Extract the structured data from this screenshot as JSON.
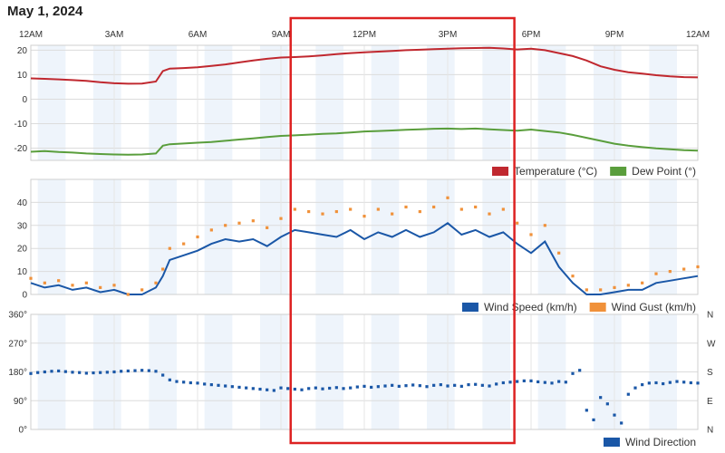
{
  "page": {
    "title": "May 1, 2024"
  },
  "highlight_color": "#dd2222",
  "chart_data": [
    {
      "type": "line",
      "x_tick_labels": [
        "12AM",
        "3AM",
        "6AM",
        "9AM",
        "12PM",
        "3PM",
        "6PM",
        "9PM",
        "12AM"
      ],
      "ylim": [
        -25,
        22
      ],
      "y_ticks": [
        -20,
        -10,
        0,
        10,
        20
      ],
      "grid": true,
      "legend_position": "bottom-right",
      "series": [
        {
          "name": "Temperature (°C)",
          "color": "#c0282f",
          "x": [
            0,
            0.5,
            1,
            1.5,
            2,
            2.5,
            3,
            3.5,
            4,
            4.5,
            4.75,
            5,
            5.5,
            6,
            6.5,
            7,
            7.5,
            8,
            8.5,
            9,
            9.5,
            10,
            10.5,
            11,
            11.5,
            12,
            12.5,
            13,
            13.5,
            14,
            14.5,
            15,
            15.5,
            16,
            16.5,
            17,
            17.5,
            18,
            18.5,
            19,
            19.5,
            20,
            20.5,
            21,
            21.5,
            22,
            22.5,
            23,
            23.5,
            24
          ],
          "values": [
            8.5,
            8.3,
            8.1,
            7.8,
            7.5,
            6.9,
            6.5,
            6.3,
            6.4,
            7.2,
            11.5,
            12.5,
            12.7,
            13.0,
            13.6,
            14.2,
            15.0,
            15.8,
            16.5,
            17.0,
            17.2,
            17.5,
            17.9,
            18.4,
            18.8,
            19.1,
            19.4,
            19.7,
            20.0,
            20.2,
            20.4,
            20.6,
            20.8,
            20.9,
            21.0,
            20.7,
            20.3,
            20.6,
            20.0,
            18.8,
            17.6,
            15.8,
            13.4,
            12.0,
            11.0,
            10.4,
            9.8,
            9.3,
            9.0,
            8.9
          ]
        },
        {
          "name": "Dew Point (°)",
          "color": "#5a9e3c",
          "x": [
            0,
            0.5,
            1,
            1.5,
            2,
            2.5,
            3,
            3.5,
            4,
            4.5,
            4.75,
            5,
            5.5,
            6,
            6.5,
            7,
            7.5,
            8,
            8.5,
            9,
            9.5,
            10,
            10.5,
            11,
            11.5,
            12,
            12.5,
            13,
            13.5,
            14,
            14.5,
            15,
            15.5,
            16,
            16.5,
            17,
            17.5,
            18,
            18.5,
            19,
            19.5,
            20,
            20.5,
            21,
            21.5,
            22,
            22.5,
            23,
            23.5,
            24
          ],
          "values": [
            -21.5,
            -21.2,
            -21.6,
            -21.8,
            -22.2,
            -22.4,
            -22.6,
            -22.7,
            -22.6,
            -22.2,
            -19.0,
            -18.4,
            -18.1,
            -17.8,
            -17.5,
            -17.0,
            -16.5,
            -16.0,
            -15.5,
            -15.0,
            -14.8,
            -14.5,
            -14.2,
            -14.0,
            -13.6,
            -13.2,
            -13.0,
            -12.8,
            -12.5,
            -12.3,
            -12.1,
            -12.0,
            -12.2,
            -12.0,
            -12.3,
            -12.6,
            -12.9,
            -12.4,
            -13.0,
            -13.6,
            -14.6,
            -15.8,
            -17.0,
            -18.2,
            -19.0,
            -19.6,
            -20.1,
            -20.5,
            -20.8,
            -21.0
          ]
        }
      ]
    },
    {
      "type": "line",
      "x_tick_labels": [
        "12AM",
        "3AM",
        "6AM",
        "9AM",
        "12PM",
        "3PM",
        "6PM",
        "9PM",
        "12AM"
      ],
      "ylim": [
        0,
        50
      ],
      "y_ticks": [
        0,
        10,
        20,
        30,
        40
      ],
      "grid": true,
      "legend_position": "bottom-right",
      "series": [
        {
          "name": "Wind Speed (km/h)",
          "color": "#1a57a7",
          "x": [
            0,
            0.5,
            1,
            1.5,
            2,
            2.5,
            3,
            3.5,
            4,
            4.5,
            4.75,
            5,
            5.5,
            6,
            6.5,
            7,
            7.5,
            8,
            8.5,
            9,
            9.5,
            10,
            10.5,
            11,
            11.5,
            12,
            12.5,
            13,
            13.5,
            14,
            14.5,
            15,
            15.5,
            16,
            16.5,
            17,
            17.5,
            18,
            18.5,
            19,
            19.5,
            20,
            20.5,
            21,
            21.5,
            22,
            22.5,
            23,
            23.5,
            24
          ],
          "values": [
            5,
            3,
            4,
            2,
            3,
            1,
            2,
            0,
            0,
            3,
            8,
            15,
            17,
            19,
            22,
            24,
            23,
            24,
            21,
            25,
            28,
            27,
            26,
            25,
            28,
            24,
            27,
            25,
            28,
            25,
            27,
            31,
            26,
            28,
            25,
            27,
            22,
            18,
            23,
            12,
            5,
            0,
            0,
            1,
            2,
            2,
            5,
            6,
            7,
            8
          ]
        },
        {
          "name": "Wind Gust (km/h)",
          "color": "#f0913a",
          "x": [
            0,
            0.5,
            1,
            1.5,
            2,
            2.5,
            3,
            3.5,
            4,
            4.5,
            4.75,
            5,
            5.5,
            6,
            6.5,
            7,
            7.5,
            8,
            8.5,
            9,
            9.5,
            10,
            10.5,
            11,
            11.5,
            12,
            12.5,
            13,
            13.5,
            14,
            14.5,
            15,
            15.5,
            16,
            16.5,
            17,
            17.5,
            18,
            18.5,
            19,
            19.5,
            20,
            20.5,
            21,
            21.5,
            22,
            22.5,
            23,
            23.5,
            24
          ],
          "values": [
            7,
            5,
            6,
            4,
            5,
            3,
            4,
            0,
            2,
            5,
            11,
            20,
            22,
            25,
            28,
            30,
            31,
            32,
            29,
            33,
            37,
            36,
            35,
            36,
            37,
            34,
            37,
            35,
            38,
            36,
            38,
            42,
            37,
            38,
            35,
            37,
            31,
            26,
            30,
            18,
            8,
            2,
            2,
            3,
            4,
            5,
            9,
            10,
            11,
            12
          ]
        }
      ]
    },
    {
      "type": "scatter",
      "x_tick_labels": [
        "12AM",
        "3AM",
        "6AM",
        "9AM",
        "12PM",
        "3PM",
        "6PM",
        "9PM",
        "12AM"
      ],
      "ylim": [
        0,
        360
      ],
      "y_ticks": [
        0,
        90,
        180,
        270,
        360
      ],
      "y_tick_labels": [
        "0°",
        "90°",
        "180°",
        "270°",
        "360°"
      ],
      "right_tick_labels": [
        "N",
        "E",
        "S",
        "W",
        "N"
      ],
      "grid": true,
      "legend_position": "bottom-right",
      "series": [
        {
          "name": "Wind Direction",
          "color": "#1a57a7",
          "x": [
            0,
            0.25,
            0.5,
            0.75,
            1,
            1.25,
            1.5,
            1.75,
            2,
            2.25,
            2.5,
            2.75,
            3,
            3.25,
            3.5,
            3.75,
            4,
            4.25,
            4.5,
            4.75,
            5,
            5.25,
            5.5,
            5.75,
            6,
            6.25,
            6.5,
            6.75,
            7,
            7.25,
            7.5,
            7.75,
            8,
            8.25,
            8.5,
            8.75,
            9,
            9.25,
            9.5,
            9.75,
            10,
            10.25,
            10.5,
            10.75,
            11,
            11.25,
            11.5,
            11.75,
            12,
            12.25,
            12.5,
            12.75,
            13,
            13.25,
            13.5,
            13.75,
            14,
            14.25,
            14.5,
            14.75,
            15,
            15.25,
            15.5,
            15.75,
            16,
            16.25,
            16.5,
            16.75,
            17,
            17.25,
            17.5,
            17.75,
            18,
            18.25,
            18.5,
            18.75,
            19,
            19.25,
            19.5,
            19.75,
            20,
            20.25,
            20.5,
            20.75,
            21,
            21.25,
            21.5,
            21.75,
            22,
            22.25,
            22.5,
            22.75,
            23,
            23.25,
            23.5,
            23.75,
            24
          ],
          "values": [
            175,
            178,
            180,
            182,
            183,
            181,
            179,
            178,
            176,
            177,
            178,
            179,
            180,
            182,
            183,
            184,
            185,
            184,
            182,
            170,
            155,
            150,
            148,
            146,
            145,
            142,
            140,
            138,
            136,
            134,
            132,
            130,
            128,
            126,
            124,
            122,
            130,
            128,
            126,
            124,
            128,
            130,
            127,
            129,
            131,
            128,
            130,
            133,
            135,
            132,
            134,
            136,
            138,
            135,
            137,
            139,
            137,
            134,
            138,
            140,
            136,
            138,
            135,
            140,
            141,
            138,
            136,
            142,
            146,
            148,
            150,
            152,
            152,
            149,
            147,
            145,
            150,
            148,
            175,
            185,
            60,
            30,
            100,
            80,
            45,
            20,
            110,
            130,
            140,
            145,
            146,
            143,
            147,
            150,
            148,
            146,
            145
          ]
        }
      ]
    }
  ]
}
